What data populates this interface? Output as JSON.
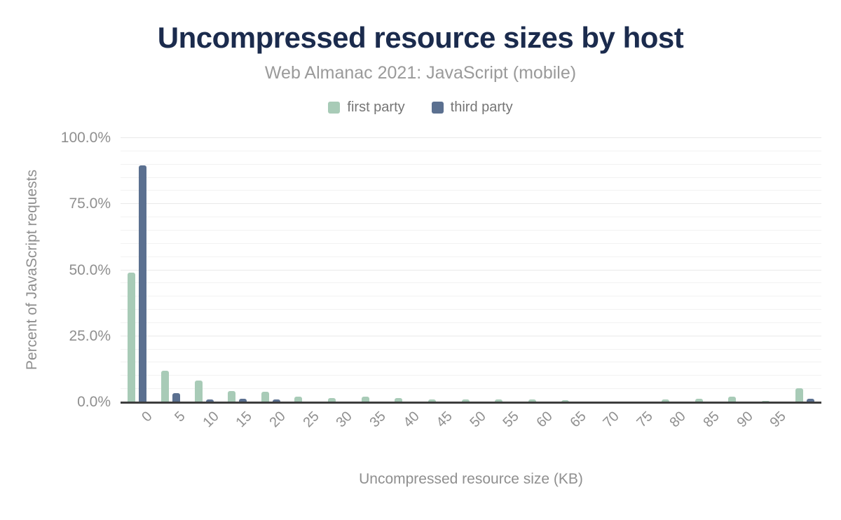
{
  "header": {
    "title": "Uncompressed resource sizes by host",
    "subtitle": "Web Almanac 2021: JavaScript (mobile)"
  },
  "legend": [
    {
      "label": "first party",
      "color": "#a8cbb7"
    },
    {
      "label": "third party",
      "color": "#5b7090"
    }
  ],
  "colors": {
    "first_party": "#a8cbb7",
    "third_party": "#5b7090",
    "title_navy": "#1b2b4d",
    "text_gray": "#8f8f8f",
    "axis_line": "#3d3d3d",
    "grid_minor": "#f2f2f2",
    "grid_major": "#e9e9e9",
    "background": "#ffffff"
  },
  "chart_data": {
    "type": "bar",
    "title": "Uncompressed resource sizes by host",
    "subtitle": "Web Almanac 2021: JavaScript (mobile)",
    "xlabel": "Uncompressed resource size (KB)",
    "ylabel": "Percent of JavaScript requests",
    "categories": [
      "0",
      "5",
      "10",
      "15",
      "20",
      "25",
      "30",
      "35",
      "40",
      "45",
      "50",
      "55",
      "60",
      "65",
      "70",
      "75",
      "80",
      "85",
      "90",
      "95",
      ""
    ],
    "series": [
      {
        "name": "first party",
        "color": "#a8cbb7",
        "values": [
          49.2,
          11.9,
          8.3,
          4.2,
          4.0,
          2.2,
          1.5,
          2.2,
          1.5,
          1.1,
          1.1,
          1.1,
          1.1,
          0.8,
          0,
          0,
          1.0,
          1.2,
          2.2,
          0.6,
          5.3
        ]
      },
      {
        "name": "third party",
        "color": "#5b7090",
        "values": [
          89.7,
          3.5,
          1.1,
          1.2,
          1.1,
          0,
          0,
          0,
          0,
          0,
          0,
          0,
          0,
          0,
          0,
          0,
          0,
          0,
          0,
          0,
          1.3
        ]
      }
    ],
    "y_ticks": [
      {
        "label": "0.0%",
        "value": 0
      },
      {
        "label": "25.0%",
        "value": 25
      },
      {
        "label": "50.0%",
        "value": 50
      },
      {
        "label": "75.0%",
        "value": 75
      },
      {
        "label": "100.0%",
        "value": 100
      }
    ],
    "ylim": [
      0,
      100
    ],
    "grid": {
      "horizontal": true,
      "minor_step": 5,
      "major_step": 25
    },
    "legend_position": "top"
  }
}
